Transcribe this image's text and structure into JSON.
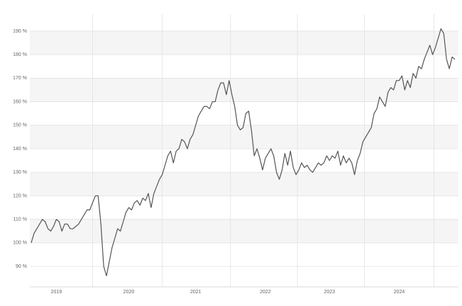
{
  "chart_data": {
    "type": "line",
    "color": "#555555",
    "categories": [
      null,
      null,
      null,
      null,
      null,
      null,
      null,
      null,
      null,
      "2019",
      null,
      null,
      null,
      null,
      null,
      null,
      null,
      null,
      null,
      null,
      null,
      null,
      null,
      null,
      null,
      null,
      null,
      null,
      null,
      null,
      null,
      null,
      null,
      null,
      null,
      "2020",
      null,
      null,
      null,
      null,
      null,
      null,
      null,
      null,
      null,
      null,
      null,
      null,
      null,
      null,
      null,
      null,
      null,
      null,
      null,
      null,
      null,
      null,
      null,
      "2021",
      null,
      null,
      null,
      null,
      null,
      null,
      null,
      null,
      null,
      null,
      null,
      null,
      null,
      null,
      null,
      null,
      null,
      null,
      null,
      null,
      null,
      null,
      null,
      null,
      "2022",
      null,
      null,
      null,
      null,
      null,
      null,
      null,
      null,
      null,
      null,
      null,
      null,
      null,
      null,
      null,
      null,
      null,
      null,
      null,
      null,
      null,
      null,
      "2023",
      null,
      null,
      null,
      null,
      null,
      null,
      null,
      null,
      null,
      null,
      null,
      null,
      null,
      null,
      null,
      null,
      null,
      null,
      null,
      null,
      null,
      null,
      null,
      null,
      "2024",
      null,
      null,
      null,
      null,
      null,
      null,
      null,
      null,
      null,
      null,
      null,
      null,
      null,
      null,
      null,
      null,
      null,
      null,
      null,
      null
    ],
    "series": [
      {
        "values": [
          100,
          104,
          106,
          108,
          110,
          109,
          106,
          105,
          107,
          110,
          109,
          105,
          108,
          108,
          106,
          106,
          107,
          108,
          110,
          112,
          114,
          114,
          117,
          120,
          120,
          108,
          90,
          86,
          92,
          98,
          102,
          106,
          105,
          109,
          113,
          115,
          114,
          117,
          118,
          116,
          119,
          118,
          121,
          115,
          121,
          124,
          127,
          129,
          133,
          137,
          139,
          134,
          139,
          140,
          144,
          143,
          140,
          144,
          146,
          150,
          154,
          156,
          158,
          158,
          157,
          160,
          160,
          165,
          168,
          168,
          163,
          169,
          163,
          158,
          150,
          148,
          149,
          155,
          156,
          148,
          137,
          140,
          136,
          131,
          136,
          138,
          140,
          137,
          130,
          127,
          131,
          138,
          133,
          139,
          132,
          129,
          131,
          134,
          132,
          133,
          131,
          130,
          132,
          134,
          133,
          134,
          137,
          135,
          137,
          136,
          139,
          133,
          137,
          134,
          136,
          134,
          129,
          135,
          138,
          143,
          145,
          147,
          149,
          155,
          157,
          162,
          160,
          158,
          164,
          166,
          165,
          169,
          169,
          171,
          165,
          169,
          166,
          172,
          170,
          175,
          174,
          178,
          181,
          184,
          180,
          183,
          187,
          191,
          189,
          178,
          174,
          179,
          178
        ]
      }
    ],
    "ylim": [
      81.3,
      197.2
    ],
    "yticks": [
      {
        "value": 90,
        "label": "90 %"
      },
      {
        "value": 100,
        "label": "100 %"
      },
      {
        "value": 110,
        "label": "110 %"
      },
      {
        "value": 120,
        "label": "120 %"
      },
      {
        "value": 130,
        "label": "130 %"
      },
      {
        "value": 140,
        "label": "140 %"
      },
      {
        "value": 150,
        "label": "150 %"
      },
      {
        "value": 160,
        "label": "160 %"
      },
      {
        "value": 170,
        "label": "170 %"
      },
      {
        "value": 180,
        "label": "180 %"
      },
      {
        "value": 190,
        "label": "190 %"
      }
    ],
    "grid": true
  }
}
